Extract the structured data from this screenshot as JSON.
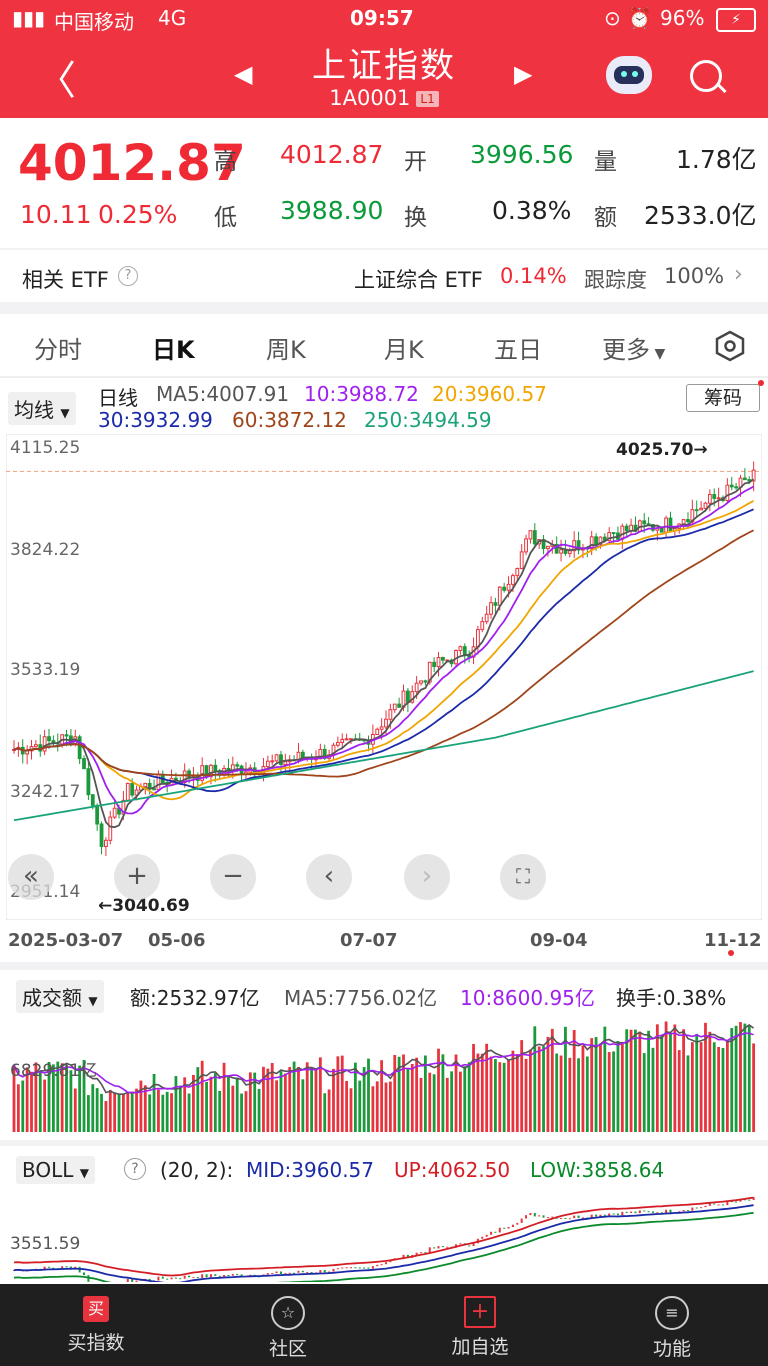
{
  "status_bar": {
    "carrier": "中国移动",
    "network": "4G",
    "time": "09:57",
    "battery": "96%"
  },
  "header": {
    "title": "上证指数",
    "code": "1A0001",
    "level": "L1"
  },
  "quote": {
    "price": "4012.87",
    "change": "10.11",
    "change_pct": "0.25%",
    "high_label": "高",
    "high": "4012.87",
    "open_label": "开",
    "open": "3996.56",
    "volume_label": "量",
    "volume": "1.78亿",
    "low_label": "低",
    "low": "3988.90",
    "turnover_label": "换",
    "turnover": "0.38%",
    "amount_label": "额",
    "amount": "2533.0亿"
  },
  "etf": {
    "label": "相关 ETF",
    "name": "上证综合 ETF",
    "pct": "0.14%",
    "track_label": "跟踪度",
    "track": "100%"
  },
  "tabs": [
    "分时",
    "日K",
    "周K",
    "月K",
    "五日",
    "更多"
  ],
  "ma": {
    "dropdown": "均线",
    "label": "日线",
    "ma5": "MA5:4007.91",
    "ma10": "10:3988.72",
    "ma20": "20:3960.57",
    "ma30": "30:3932.99",
    "ma60": "60:3872.12",
    "ma250": "250:3494.59",
    "chips_button": "筹码"
  },
  "kline": {
    "y_ticks": [
      "4115.25",
      "3824.22",
      "3533.19",
      "3242.17",
      "2951.14"
    ],
    "max_marker": "4025.70→",
    "min_marker": "←3040.69",
    "x_ticks": [
      "2025-03-07",
      "05-06",
      "07-07",
      "09-04",
      "11-12"
    ]
  },
  "volume": {
    "dropdown": "成交额",
    "amount": "额:2532.97亿",
    "ma5": "MA5:7756.02亿",
    "ma10": "10:8600.95亿",
    "turnover": "换手:0.38%",
    "y_tick": "6829.81亿"
  },
  "boll": {
    "dropdown": "BOLL",
    "params": "(20, 2):",
    "mid": "MID:3960.57",
    "up": "UP:4062.50",
    "low": "LOW:3858.64",
    "y_tick": "3551.59"
  },
  "bottom_nav": [
    "买指数",
    "社区",
    "加自选",
    "功能"
  ],
  "colors": {
    "header": "#ef3340",
    "up": "#ef2a35",
    "down": "#0a9a3a"
  }
}
